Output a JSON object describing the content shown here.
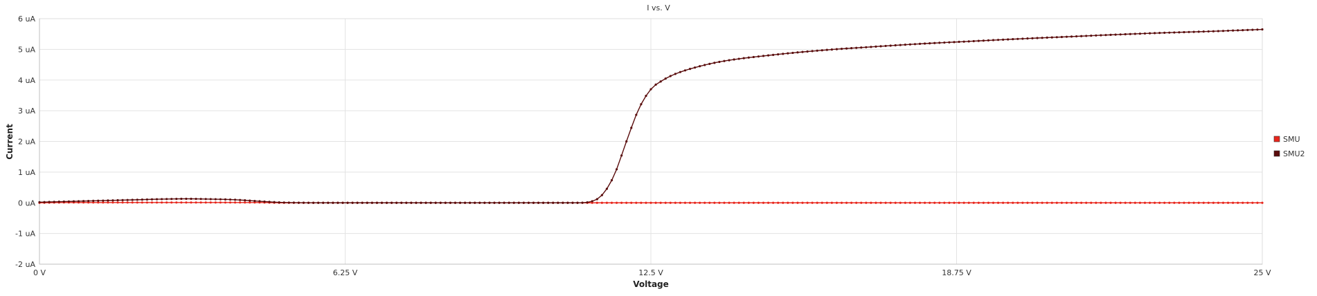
{
  "chart_data": {
    "type": "line",
    "title": "I vs. V",
    "xlabel": "Voltage",
    "ylabel": "Current",
    "x_unit": "V",
    "y_unit": "uA",
    "xlim": [
      0,
      25
    ],
    "ylim": [
      -2,
      6
    ],
    "x_ticks": [
      0,
      6.25,
      12.5,
      18.75,
      25
    ],
    "x_tick_labels": [
      "0 V",
      "6.25 V",
      "12.5 V",
      "18.75 V",
      "25 V"
    ],
    "y_ticks": [
      -2,
      -1,
      0,
      1,
      2,
      3,
      4,
      5,
      6
    ],
    "y_tick_labels": [
      "-2 uA",
      "-1 uA",
      "0 uA",
      "1 uA",
      "2 uA",
      "3 uA",
      "4 uA",
      "5 uA",
      "6 uA"
    ],
    "grid": true,
    "legend_position": "right",
    "x": [
      0,
      0.5,
      1,
      1.5,
      2,
      2.5,
      3,
      3.5,
      4,
      4.5,
      5,
      6,
      7,
      8,
      9,
      10,
      11,
      11.25,
      11.5,
      11.75,
      12,
      12.25,
      12.5,
      12.75,
      13,
      13.5,
      14,
      15,
      16,
      17,
      18,
      19,
      20,
      21,
      22,
      23,
      24,
      25
    ],
    "series": [
      {
        "name": "SMU",
        "color": "#e8261c",
        "values": [
          0.0,
          0.01,
          0.01,
          0.01,
          0.01,
          0.01,
          0.01,
          0.01,
          0.01,
          0.01,
          0.0,
          0.0,
          0.0,
          0.0,
          0.0,
          0.0,
          0.0,
          0.0,
          0.0,
          0.0,
          0.0,
          0.0,
          0.0,
          0.0,
          0.0,
          0.0,
          0.0,
          0.0,
          0.0,
          0.0,
          0.0,
          0.0,
          0.0,
          0.0,
          0.0,
          0.0,
          0.0,
          0.0
        ]
      },
      {
        "name": "SMU2",
        "color": "#5a0d0d",
        "values": [
          0.02,
          0.04,
          0.06,
          0.08,
          0.1,
          0.12,
          0.13,
          0.12,
          0.1,
          0.05,
          0.01,
          0.0,
          0.0,
          0.0,
          0.0,
          0.0,
          0.0,
          0.03,
          0.25,
          0.9,
          2.0,
          3.05,
          3.7,
          4.0,
          4.2,
          4.45,
          4.62,
          4.82,
          4.97,
          5.08,
          5.18,
          5.26,
          5.34,
          5.41,
          5.48,
          5.54,
          5.59,
          5.65
        ]
      }
    ]
  }
}
